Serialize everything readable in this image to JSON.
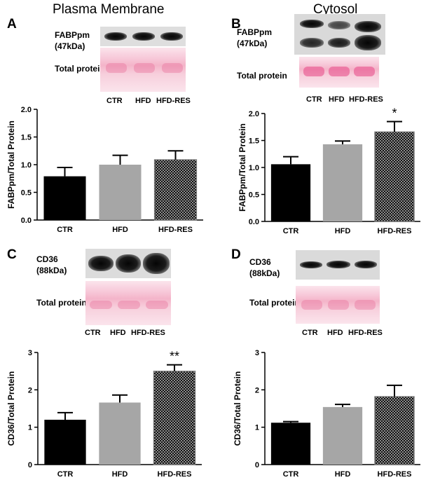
{
  "headers": {
    "left": "Plasma Membrane",
    "right": "Cytosol"
  },
  "panels": [
    {
      "letter": "A",
      "blot_label": "FABPpm\n(47kDa)",
      "total_protein_label": "Total protein",
      "lanes": [
        "CTR",
        "HFD",
        "HFD-RES"
      ]
    },
    {
      "letter": "B",
      "blot_label": "FABPpm\n(47kDa)",
      "total_protein_label": "Total protein",
      "lanes": [
        "CTR",
        "HFD",
        "HFD-RES"
      ]
    },
    {
      "letter": "C",
      "blot_label": "CD36\n(88kDa)",
      "total_protein_label": "Total protein",
      "lanes": [
        "CTR",
        "HFD",
        "HFD-RES"
      ]
    },
    {
      "letter": "D",
      "blot_label": "CD36\n(88kDa)",
      "total_protein_label": "Total protein",
      "lanes": [
        "CTR",
        "HFD",
        "HFD-RES"
      ]
    }
  ],
  "colors": {
    "ctr": "#000000",
    "hfd": "#a6a6a6",
    "hfd_res": "checkered-black-gray"
  },
  "chart_data": [
    {
      "type": "bar",
      "panel": "A",
      "categories": [
        "CTR",
        "HFD",
        "HFD-RES"
      ],
      "values": [
        0.79,
        1.0,
        1.09
      ],
      "errors": [
        0.16,
        0.17,
        0.16
      ],
      "significance": [
        "",
        "",
        ""
      ],
      "ylabel": "FABPpm/Total Protein",
      "ylim": [
        0,
        2.0
      ],
      "yticks": [
        "0.0",
        "0.5",
        "1.0",
        "1.5",
        "2.0"
      ]
    },
    {
      "type": "bar",
      "panel": "B",
      "categories": [
        "CTR",
        "HFD",
        "HFD-RES"
      ],
      "values": [
        1.06,
        1.43,
        1.66
      ],
      "errors": [
        0.14,
        0.06,
        0.19
      ],
      "significance": [
        "",
        "",
        "*"
      ],
      "ylabel": "FABPpm/Total Protein",
      "ylim": [
        0,
        2.0
      ],
      "yticks": [
        "0.0",
        "0.5",
        "1.0",
        "1.5",
        "2.0"
      ]
    },
    {
      "type": "bar",
      "panel": "C",
      "categories": [
        "CTR",
        "HFD",
        "HFD-RES"
      ],
      "values": [
        1.2,
        1.66,
        2.5
      ],
      "errors": [
        0.19,
        0.2,
        0.17
      ],
      "significance": [
        "",
        "",
        "**"
      ],
      "ylabel": "CD36/Total Protein",
      "ylim": [
        0,
        3
      ],
      "yticks": [
        "0",
        "1",
        "2",
        "3"
      ]
    },
    {
      "type": "bar",
      "panel": "D",
      "categories": [
        "CTR",
        "HFD",
        "HFD-RES"
      ],
      "values": [
        1.12,
        1.54,
        1.82
      ],
      "errors": [
        0.03,
        0.07,
        0.3
      ],
      "significance": [
        "",
        "",
        ""
      ],
      "ylabel": "CD36/Total Protein",
      "ylim": [
        0,
        3
      ],
      "yticks": [
        "0",
        "1",
        "2",
        "3"
      ]
    }
  ]
}
